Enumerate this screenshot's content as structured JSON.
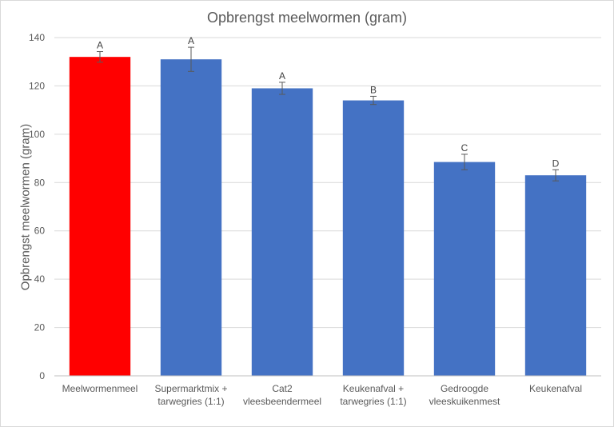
{
  "chart_data": {
    "type": "bar",
    "title": "Opbrengst meelwormen (gram)",
    "xlabel": "",
    "ylabel": "Opbrengst meelwormen (gram)",
    "ylim": [
      0,
      140
    ],
    "yticks": [
      0,
      20,
      40,
      60,
      80,
      100,
      120,
      140
    ],
    "grid": true,
    "categories": [
      [
        "Meelwormenmeel"
      ],
      [
        "Supermarktmix +",
        "tarwegries (1:1)"
      ],
      [
        "Cat2",
        "vleesbeendermeel"
      ],
      [
        "Keukenafval +",
        "tarwegries (1:1)"
      ],
      [
        "Gedroogde",
        "vleeskuikenmest"
      ],
      [
        "Keukenafval"
      ]
    ],
    "values": [
      132,
      131,
      119,
      114,
      88.5,
      83
    ],
    "errors": [
      2.2,
      5,
      2.5,
      1.7,
      3.2,
      2.3
    ],
    "significance_labels": [
      "A",
      "A",
      "A",
      "B",
      "C",
      "D"
    ],
    "colors": [
      "#ff0000",
      "#4472c4",
      "#4472c4",
      "#4472c4",
      "#4472c4",
      "#4472c4"
    ]
  }
}
